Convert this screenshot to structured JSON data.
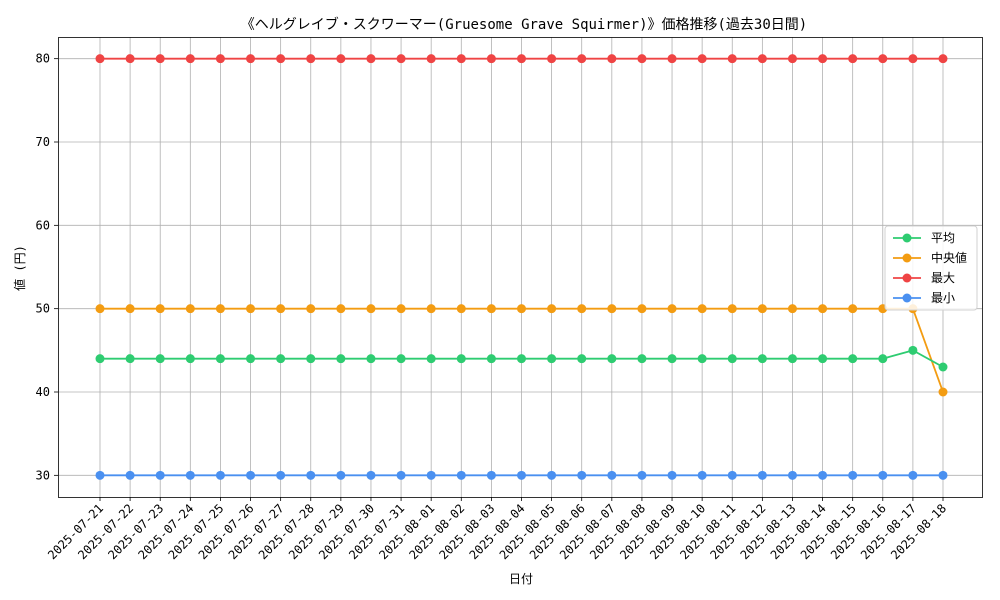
{
  "chart_data": {
    "type": "line",
    "title": "《ヘルグレイブ・スクワーマー(Gruesome Grave Squirmer)》価格推移(過去30日間)",
    "xlabel": "日付",
    "ylabel": "値 (円)",
    "ylim": [
      27.4,
      82.6
    ],
    "yticks": [
      30,
      40,
      50,
      60,
      70,
      80
    ],
    "grid": true,
    "legend_position": "center-right",
    "x": [
      "2025-07-21",
      "2025-07-22",
      "2025-07-23",
      "2025-07-24",
      "2025-07-25",
      "2025-07-26",
      "2025-07-27",
      "2025-07-28",
      "2025-07-29",
      "2025-07-30",
      "2025-07-31",
      "2025-08-01",
      "2025-08-02",
      "2025-08-03",
      "2025-08-04",
      "2025-08-05",
      "2025-08-06",
      "2025-08-07",
      "2025-08-08",
      "2025-08-09",
      "2025-08-10",
      "2025-08-11",
      "2025-08-12",
      "2025-08-13",
      "2025-08-14",
      "2025-08-15",
      "2025-08-16",
      "2025-08-17",
      "2025-08-18"
    ],
    "series": [
      {
        "name": "平均",
        "color": "#2ecc71",
        "values": [
          44,
          44,
          44,
          44,
          44,
          44,
          44,
          44,
          44,
          44,
          44,
          44,
          44,
          44,
          44,
          44,
          44,
          44,
          44,
          44,
          44,
          44,
          44,
          44,
          44,
          44,
          44,
          45,
          43
        ]
      },
      {
        "name": "中央値",
        "color": "#f39c12",
        "values": [
          50,
          50,
          50,
          50,
          50,
          50,
          50,
          50,
          50,
          50,
          50,
          50,
          50,
          50,
          50,
          50,
          50,
          50,
          50,
          50,
          50,
          50,
          50,
          50,
          50,
          50,
          50,
          50,
          40
        ]
      },
      {
        "name": "最大",
        "color": "#ef4444",
        "values": [
          80,
          80,
          80,
          80,
          80,
          80,
          80,
          80,
          80,
          80,
          80,
          80,
          80,
          80,
          80,
          80,
          80,
          80,
          80,
          80,
          80,
          80,
          80,
          80,
          80,
          80,
          80,
          80,
          80
        ]
      },
      {
        "name": "最小",
        "color": "#4a90f0",
        "values": [
          30,
          30,
          30,
          30,
          30,
          30,
          30,
          30,
          30,
          30,
          30,
          30,
          30,
          30,
          30,
          30,
          30,
          30,
          30,
          30,
          30,
          30,
          30,
          30,
          30,
          30,
          30,
          30,
          30
        ]
      }
    ]
  }
}
